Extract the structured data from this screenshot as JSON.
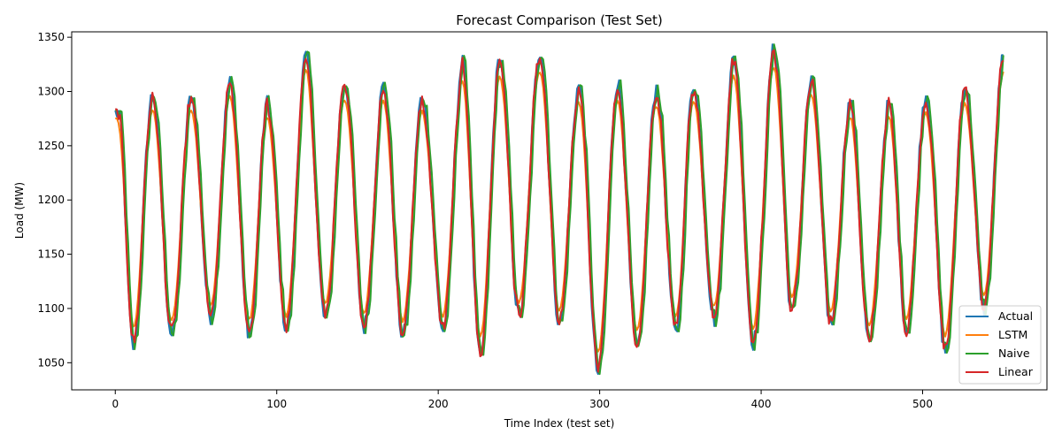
{
  "chart_data": {
    "type": "line",
    "title": "Forecast Comparison (Test Set)",
    "xlabel": "Time Index (test set)",
    "ylabel": "Load (MW)",
    "xlim": [
      -27,
      577
    ],
    "ylim": [
      1025,
      1355
    ],
    "x_ticks": [
      0,
      100,
      200,
      300,
      400,
      500
    ],
    "y_ticks": [
      1050,
      1100,
      1150,
      1200,
      1250,
      1300,
      1350
    ],
    "grid": false,
    "legend_position": "lower-right",
    "n_points": 551,
    "cycle_peaks": [
      {
        "x": 2,
        "y": 1280
      },
      {
        "x": 23,
        "y": 1297
      },
      {
        "x": 47,
        "y": 1296
      },
      {
        "x": 71,
        "y": 1308
      },
      {
        "x": 94,
        "y": 1288
      },
      {
        "x": 118,
        "y": 1332
      },
      {
        "x": 142,
        "y": 1309
      },
      {
        "x": 166,
        "y": 1305
      },
      {
        "x": 190,
        "y": 1295
      },
      {
        "x": 215,
        "y": 1326
      },
      {
        "x": 238,
        "y": 1330
      },
      {
        "x": 263,
        "y": 1338
      },
      {
        "x": 287,
        "y": 1305
      },
      {
        "x": 311,
        "y": 1309
      },
      {
        "x": 335,
        "y": 1303
      },
      {
        "x": 358,
        "y": 1307
      },
      {
        "x": 383,
        "y": 1330
      },
      {
        "x": 408,
        "y": 1340
      },
      {
        "x": 431,
        "y": 1309
      },
      {
        "x": 455,
        "y": 1289
      },
      {
        "x": 479,
        "y": 1288
      },
      {
        "x": 502,
        "y": 1298
      },
      {
        "x": 526,
        "y": 1305
      },
      {
        "x": 550,
        "y": 1331
      }
    ],
    "cycle_troughs": [
      {
        "x": 11,
        "y": 1065
      },
      {
        "x": 35,
        "y": 1075
      },
      {
        "x": 59,
        "y": 1093
      },
      {
        "x": 83,
        "y": 1074
      },
      {
        "x": 106,
        "y": 1080
      },
      {
        "x": 130,
        "y": 1089
      },
      {
        "x": 154,
        "y": 1083
      },
      {
        "x": 178,
        "y": 1074
      },
      {
        "x": 203,
        "y": 1080
      },
      {
        "x": 226,
        "y": 1053
      },
      {
        "x": 250,
        "y": 1092
      },
      {
        "x": 275,
        "y": 1085
      },
      {
        "x": 299,
        "y": 1040
      },
      {
        "x": 323,
        "y": 1060
      },
      {
        "x": 347,
        "y": 1076
      },
      {
        "x": 371,
        "y": 1090
      },
      {
        "x": 395,
        "y": 1069
      },
      {
        "x": 419,
        "y": 1095
      },
      {
        "x": 443,
        "y": 1085
      },
      {
        "x": 467,
        "y": 1067
      },
      {
        "x": 490,
        "y": 1080
      },
      {
        "x": 514,
        "y": 1060
      },
      {
        "x": 538,
        "y": 1100
      }
    ],
    "series": [
      {
        "name": "Actual",
        "color": "#1f77b4"
      },
      {
        "name": "LSTM",
        "color": "#ff7f0e"
      },
      {
        "name": "Naive",
        "color": "#2ca02c"
      },
      {
        "name": "Linear",
        "color": "#d62728"
      }
    ]
  }
}
